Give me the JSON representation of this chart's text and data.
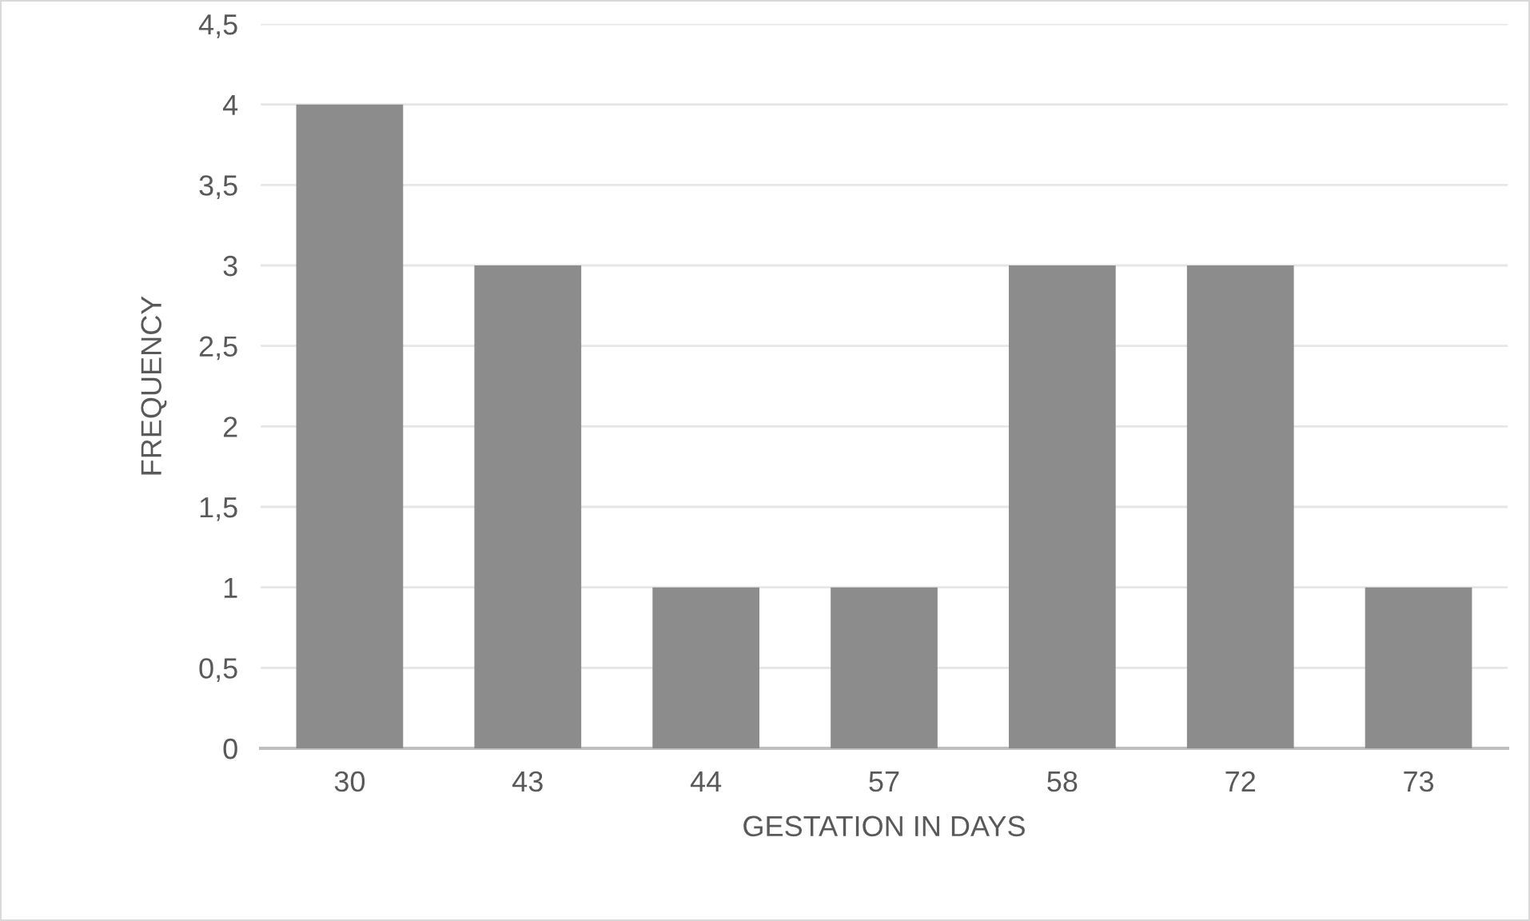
{
  "chart_data": {
    "type": "bar",
    "xlabel": "GESTATION IN DAYS",
    "ylabel": "FREQUENCY",
    "categories": [
      "30",
      "43",
      "44",
      "57",
      "58",
      "72",
      "73"
    ],
    "values": [
      4,
      3,
      1,
      1,
      3,
      3,
      1
    ],
    "color": "#8c8c8c",
    "ylim": [
      0,
      4.5
    ],
    "yticks": [
      0,
      {
        "value": 0.5,
        "label": "0,5"
      },
      1,
      {
        "value": 1.5,
        "label": "1,5"
      },
      2,
      {
        "value": 2.5,
        "label": "2,5"
      },
      3,
      {
        "value": 3.5,
        "label": "3,5"
      },
      4,
      {
        "value": 4.5,
        "label": "4,5"
      }
    ],
    "grid": "y",
    "legend": false
  }
}
